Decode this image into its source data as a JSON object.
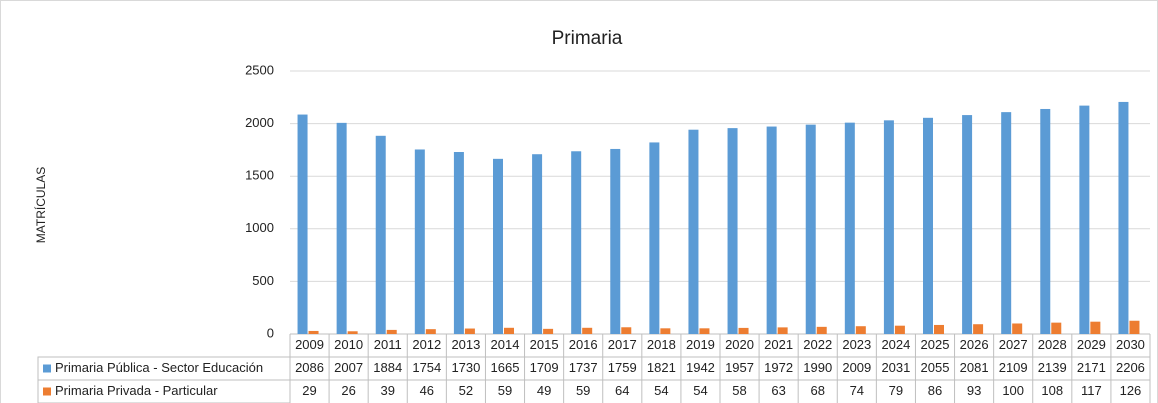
{
  "chart_data": {
    "type": "bar",
    "title": "Primaria",
    "y_label": "MATRÍCULAS",
    "categories": [
      "2009",
      "2010",
      "2011",
      "2012",
      "2013",
      "2014",
      "2015",
      "2016",
      "2017",
      "2018",
      "2019",
      "2020",
      "2021",
      "2022",
      "2023",
      "2024",
      "2025",
      "2026",
      "2027",
      "2028",
      "2029",
      "2030"
    ],
    "series": [
      {
        "name": "Primaria Pública - Sector Educación",
        "color": "#5b9bd5",
        "values": [
          2086,
          2007,
          1884,
          1754,
          1730,
          1665,
          1709,
          1737,
          1759,
          1821,
          1942,
          1957,
          1972,
          1990,
          2009,
          2031,
          2055,
          2081,
          2109,
          2139,
          2171,
          2206
        ]
      },
      {
        "name": "Primaria Privada - Particular",
        "color": "#ed7d31",
        "values": [
          29,
          26,
          39,
          46,
          52,
          59,
          49,
          59,
          64,
          54,
          54,
          58,
          63,
          68,
          74,
          79,
          86,
          93,
          100,
          108,
          117,
          126
        ]
      }
    ],
    "ylim": [
      0,
      2500
    ],
    "yticks": [
      0,
      500,
      1000,
      1500,
      2000,
      2500
    ],
    "grid": true
  }
}
